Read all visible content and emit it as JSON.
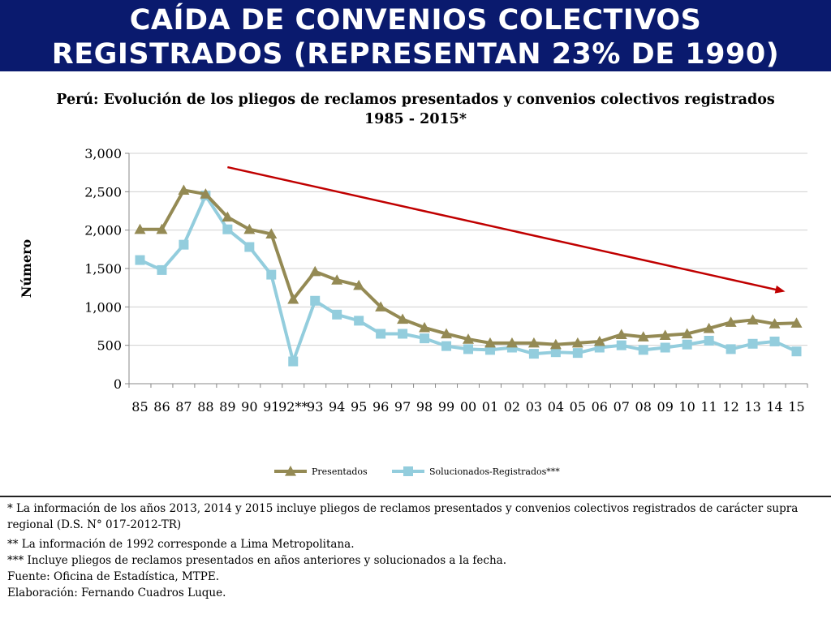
{
  "header": {
    "title_line1": "CAÍDA DE CONVENIOS COLECTIVOS",
    "title_line2": "REGISTRADOS (REPRESENTAN 23% DE 1990)"
  },
  "chart_data": {
    "type": "line",
    "title_line1": "Perú: Evolución de los pliegos de reclamos presentados y convenios colectivos registrados",
    "title_line2": "1985 - 2015*",
    "ylabel": "Número",
    "xlabel": "",
    "ylim": [
      0,
      3000
    ],
    "yticks": [
      0,
      500,
      1000,
      1500,
      2000,
      2500,
      3000
    ],
    "ytick_labels": [
      "0",
      "500",
      "1,000",
      "1,500",
      "2,000",
      "2,500",
      "3,000"
    ],
    "categories": [
      "85",
      "86",
      "87",
      "88",
      "89",
      "90",
      "91",
      "92**",
      "93",
      "94",
      "95",
      "96",
      "97",
      "98",
      "99",
      "00",
      "01",
      "02",
      "03",
      "04",
      "05",
      "06",
      "07",
      "08",
      "09",
      "10",
      "11",
      "12",
      "13",
      "14",
      "15"
    ],
    "grid": true,
    "legend_position": "bottom",
    "series": [
      {
        "name": "Presentados",
        "color": "#948a54",
        "marker": "triangle",
        "values": [
          2010,
          2010,
          2520,
          2470,
          2170,
          2010,
          1950,
          1100,
          1460,
          1350,
          1280,
          1000,
          840,
          730,
          650,
          580,
          530,
          530,
          530,
          510,
          530,
          550,
          640,
          610,
          630,
          650,
          720,
          800,
          830,
          780,
          790
        ]
      },
      {
        "name": "Solucionados-Registrados***",
        "color": "#93cddd",
        "marker": "square",
        "values": [
          1610,
          1480,
          1810,
          2450,
          2010,
          1780,
          1420,
          290,
          1080,
          900,
          820,
          650,
          650,
          590,
          490,
          450,
          440,
          470,
          390,
          410,
          400,
          470,
          500,
          440,
          470,
          510,
          560,
          450,
          520,
          550,
          420
        ]
      }
    ],
    "trend_arrow": {
      "color": "#c00000",
      "from": {
        "x": "89",
        "y": 2820
      },
      "to": {
        "x": "15",
        "y": 1200
      }
    }
  },
  "notes": [
    "* La información de los años 2013, 2014 y 2015 incluye pliegos de reclamos presentados y convenios colectivos registrados de carácter supra regional (D.S. N° 017-2012-TR)",
    "** La información de 1992 corresponde a Lima Metropolitana.",
    "*** Incluye pliegos de reclamos presentados en años anteriores y solucionados a la fecha.",
    "Fuente: Oficina de Estadística, MTPE.",
    "Elaboración: Fernando Cuadros Luque."
  ]
}
